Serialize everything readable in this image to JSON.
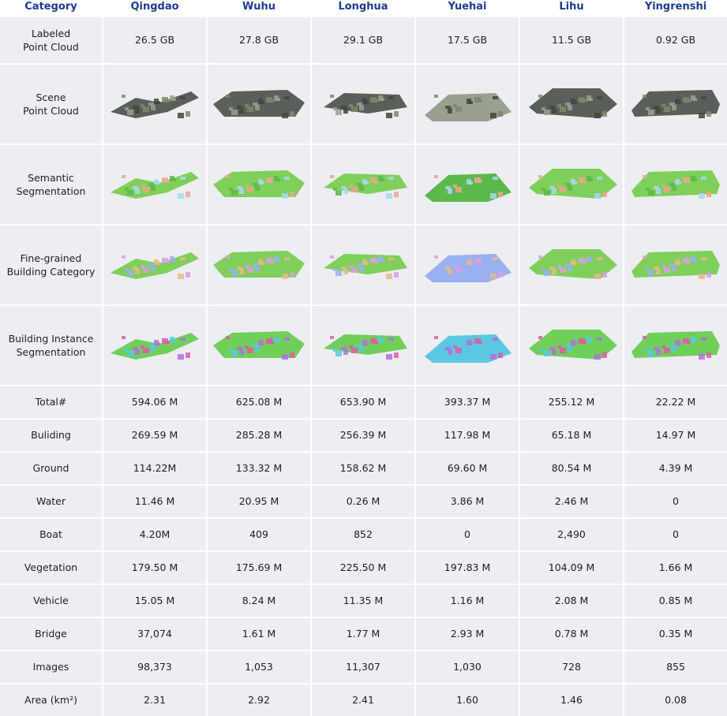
{
  "table": {
    "header": [
      "Category",
      "Qingdao",
      "Wuhu",
      "Longhua",
      "Yuehai",
      "Lihu",
      "Yingrenshi"
    ],
    "rows": [
      [
        "Labeled\nPoint Cloud",
        "26.5 GB",
        "27.8 GB",
        "29.1 GB",
        "17.5 GB",
        "11.5 GB",
        "0.92 GB"
      ],
      [
        "Scene\nPoint Cloud"
      ],
      [
        "Semantic\nSegmentation"
      ],
      [
        "Fine-grained\nBuilding Category"
      ],
      [
        "Building Instance\nSegmentation"
      ],
      [
        "Total#",
        "594.06 M",
        "625.08 M",
        "653.90 M",
        "393.37 M",
        "255.12 M",
        "22.22 M"
      ],
      [
        "Buliding",
        "269.59 M",
        "285.28 M",
        "256.39 M",
        "117.98 M",
        "65.18 M",
        "14.97 M"
      ],
      [
        "Ground",
        "114.22M",
        "133.32 M",
        "158.62 M",
        "69.60 M",
        "80.54 M",
        "4.39 M"
      ],
      [
        "Water",
        "11.46 M",
        "20.95 M",
        "0.26 M",
        "3.86 M",
        "2.46 M",
        "0"
      ],
      [
        "Boat",
        "4.20M",
        "409",
        "852",
        "0",
        "2,490",
        "0"
      ],
      [
        "Vegetation",
        "179.50 M",
        "175.69 M",
        "225.50 M",
        "197.83 M",
        "104.09 M",
        "1.66 M"
      ],
      [
        "Vehicle",
        "15.05 M",
        "8.24 M",
        "11.35 M",
        "1.16 M",
        "2.08 M",
        "0.85 M"
      ],
      [
        "Bridge",
        "37,074",
        "1.61 M",
        "1.77 M",
        "2.93 M",
        "0.78 M",
        "0.35 M"
      ],
      [
        "Images",
        "98,373",
        "1,053",
        "11,307",
        "1,030",
        "728",
        "855"
      ],
      [
        "Area (km²)",
        "2.31",
        "2.92",
        "2.41",
        "1.60",
        "1.46",
        "0.08"
      ]
    ]
  }
}
